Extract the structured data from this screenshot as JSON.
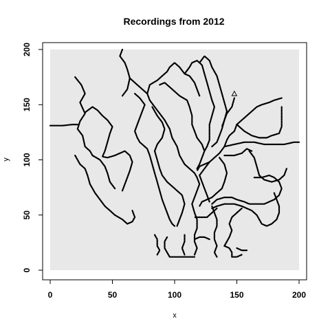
{
  "chart_data": {
    "type": "scatter",
    "title": "Recordings from 2012",
    "xlabel": "x",
    "ylabel": "y",
    "xlim": [
      0,
      200
    ],
    "ylim": [
      0,
      200
    ],
    "xticks": [
      0,
      50,
      100,
      150,
      200
    ],
    "yticks": [
      0,
      50,
      100,
      150,
      200
    ],
    "region_fill": "#e8e8e8",
    "track_color": "#000000",
    "marker": {
      "shape": "triangle-open",
      "x": 148,
      "y": 160
    },
    "tracks": [
      [
        [
          0,
          131
        ],
        [
          10,
          131
        ],
        [
          18,
          132
        ],
        [
          22,
          132
        ]
      ],
      [
        [
          20,
          175
        ],
        [
          25,
          168
        ],
        [
          28,
          160
        ],
        [
          24,
          152
        ],
        [
          28,
          142
        ],
        [
          24,
          135
        ],
        [
          22,
          128
        ],
        [
          26,
          122
        ],
        [
          28,
          112
        ],
        [
          32,
          108
        ],
        [
          34,
          104
        ]
      ],
      [
        [
          20,
          104
        ],
        [
          24,
          96
        ],
        [
          28,
          92
        ],
        [
          30,
          86
        ],
        [
          32,
          78
        ],
        [
          36,
          70
        ],
        [
          40,
          64
        ],
        [
          44,
          58
        ],
        [
          48,
          54
        ],
        [
          52,
          50
        ],
        [
          58,
          46
        ],
        [
          62,
          42
        ],
        [
          66,
          44
        ],
        [
          68,
          48
        ],
        [
          66,
          54
        ]
      ],
      [
        [
          28,
          143
        ],
        [
          34,
          148
        ],
        [
          38,
          145
        ],
        [
          42,
          140
        ],
        [
          46,
          136
        ],
        [
          50,
          130
        ],
        [
          48,
          124
        ],
        [
          46,
          116
        ],
        [
          44,
          108
        ],
        [
          42,
          103
        ],
        [
          46,
          102
        ],
        [
          52,
          104
        ]
      ],
      [
        [
          34,
          104
        ],
        [
          40,
          100
        ],
        [
          44,
          94
        ],
        [
          46,
          88
        ],
        [
          48,
          80
        ],
        [
          52,
          74
        ]
      ],
      [
        [
          52,
          104
        ],
        [
          60,
          108
        ],
        [
          64,
          104
        ],
        [
          66,
          98
        ],
        [
          64,
          90
        ],
        [
          62,
          84
        ],
        [
          60,
          78
        ],
        [
          58,
          72
        ]
      ],
      [
        [
          58,
          158
        ],
        [
          62,
          164
        ],
        [
          64,
          174
        ],
        [
          62,
          182
        ],
        [
          60,
          188
        ],
        [
          56,
          194
        ],
        [
          58,
          200
        ]
      ],
      [
        [
          64,
          174
        ],
        [
          70,
          168
        ],
        [
          74,
          164
        ],
        [
          78,
          160
        ],
        [
          80,
          154
        ],
        [
          84,
          148
        ],
        [
          88,
          142
        ],
        [
          92,
          136
        ],
        [
          96,
          128
        ],
        [
          98,
          120
        ],
        [
          102,
          112
        ],
        [
          104,
          104
        ],
        [
          108,
          96
        ],
        [
          112,
          92
        ],
        [
          116,
          88
        ],
        [
          118,
          84
        ],
        [
          120,
          78
        ],
        [
          118,
          72
        ],
        [
          116,
          66
        ],
        [
          114,
          60
        ],
        [
          116,
          52
        ],
        [
          118,
          46
        ],
        [
          118,
          38
        ],
        [
          116,
          32
        ],
        [
          116,
          26
        ],
        [
          118,
          20
        ],
        [
          116,
          14
        ]
      ],
      [
        [
          68,
          160
        ],
        [
          72,
          156
        ],
        [
          76,
          150
        ],
        [
          74,
          144
        ],
        [
          72,
          138
        ],
        [
          70,
          132
        ],
        [
          68,
          126
        ],
        [
          70,
          120
        ],
        [
          72,
          116
        ],
        [
          78,
          110
        ],
        [
          80,
          104
        ],
        [
          82,
          96
        ],
        [
          84,
          88
        ],
        [
          86,
          80
        ],
        [
          88,
          72
        ],
        [
          90,
          64
        ],
        [
          92,
          58
        ],
        [
          94,
          52
        ],
        [
          96,
          46
        ],
        [
          98,
          42
        ],
        [
          100,
          40
        ]
      ],
      [
        [
          78,
          160
        ],
        [
          80,
          168
        ],
        [
          86,
          172
        ],
        [
          90,
          176
        ],
        [
          94,
          180
        ],
        [
          96,
          184
        ],
        [
          100,
          188
        ],
        [
          104,
          184
        ],
        [
          108,
          178
        ],
        [
          112,
          176
        ],
        [
          116,
          170
        ],
        [
          118,
          164
        ],
        [
          120,
          158
        ]
      ],
      [
        [
          82,
          148
        ],
        [
          86,
          140
        ],
        [
          90,
          134
        ],
        [
          92,
          128
        ],
        [
          90,
          120
        ],
        [
          86,
          114
        ],
        [
          84,
          108
        ],
        [
          86,
          100
        ],
        [
          88,
          92
        ],
        [
          90,
          86
        ],
        [
          94,
          80
        ],
        [
          98,
          76
        ],
        [
          102,
          72
        ],
        [
          106,
          68
        ],
        [
          108,
          60
        ],
        [
          106,
          52
        ],
        [
          104,
          46
        ],
        [
          102,
          40
        ]
      ],
      [
        [
          88,
          168
        ],
        [
          92,
          170
        ],
        [
          96,
          166
        ],
        [
          100,
          162
        ],
        [
          104,
          158
        ],
        [
          110,
          154
        ],
        [
          112,
          148
        ],
        [
          114,
          140
        ],
        [
          114,
          132
        ],
        [
          116,
          126
        ],
        [
          118,
          120
        ],
        [
          122,
          114
        ],
        [
          124,
          108
        ],
        [
          122,
          102
        ],
        [
          120,
          96
        ],
        [
          118,
          92
        ]
      ],
      [
        [
          108,
          178
        ],
        [
          112,
          184
        ],
        [
          114,
          188
        ],
        [
          118,
          190
        ],
        [
          122,
          186
        ],
        [
          124,
          178
        ],
        [
          126,
          170
        ],
        [
          128,
          162
        ],
        [
          130,
          154
        ],
        [
          132,
          148
        ],
        [
          130,
          140
        ],
        [
          128,
          132
        ],
        [
          128,
          126
        ],
        [
          128,
          118
        ],
        [
          126,
          112
        ],
        [
          124,
          108
        ]
      ],
      [
        [
          120,
          188
        ],
        [
          124,
          194
        ],
        [
          128,
          190
        ],
        [
          130,
          184
        ],
        [
          134,
          176
        ],
        [
          136,
          168
        ],
        [
          138,
          160
        ],
        [
          140,
          152
        ],
        [
          142,
          144
        ],
        [
          140,
          136
        ],
        [
          138,
          128
        ],
        [
          136,
          122
        ],
        [
          134,
          116
        ],
        [
          130,
          112
        ]
      ],
      [
        [
          148,
          156
        ],
        [
          146,
          148
        ],
        [
          142,
          142
        ],
        [
          140,
          136
        ],
        [
          138,
          130
        ]
      ],
      [
        [
          150,
          132
        ],
        [
          154,
          136
        ],
        [
          158,
          140
        ],
        [
          162,
          144
        ],
        [
          166,
          148
        ],
        [
          170,
          150
        ],
        [
          176,
          152
        ],
        [
          180,
          154
        ],
        [
          186,
          156
        ]
      ],
      [
        [
          150,
          132
        ],
        [
          148,
          126
        ],
        [
          144,
          122
        ],
        [
          142,
          118
        ],
        [
          140,
          112
        ],
        [
          136,
          106
        ],
        [
          132,
          102
        ],
        [
          128,
          98
        ],
        [
          124,
          96
        ],
        [
          120,
          94
        ],
        [
          118,
          90
        ]
      ],
      [
        [
          150,
          132
        ],
        [
          156,
          126
        ],
        [
          162,
          122
        ],
        [
          168,
          120
        ],
        [
          174,
          120
        ],
        [
          178,
          122
        ],
        [
          184,
          124
        ],
        [
          186,
          130
        ],
        [
          186,
          136
        ],
        [
          186,
          142
        ],
        [
          186,
          148
        ]
      ],
      [
        [
          140,
          112
        ],
        [
          148,
          114
        ],
        [
          156,
          116
        ],
        [
          164,
          116
        ],
        [
          172,
          114
        ],
        [
          180,
          114
        ],
        [
          188,
          114
        ],
        [
          196,
          116
        ],
        [
          200,
          116
        ]
      ],
      [
        [
          140,
          104
        ],
        [
          148,
          104
        ],
        [
          154,
          106
        ],
        [
          158,
          110
        ],
        [
          162,
          108
        ]
      ],
      [
        [
          160,
          108
        ],
        [
          164,
          102
        ],
        [
          166,
          94
        ],
        [
          168,
          86
        ],
        [
          172,
          82
        ],
        [
          178,
          80
        ],
        [
          184,
          82
        ],
        [
          188,
          86
        ],
        [
          190,
          92
        ]
      ],
      [
        [
          136,
          102
        ],
        [
          140,
          96
        ],
        [
          142,
          88
        ],
        [
          140,
          80
        ],
        [
          138,
          74
        ],
        [
          134,
          70
        ],
        [
          130,
          66
        ],
        [
          126,
          64
        ],
        [
          122,
          62
        ],
        [
          120,
          58
        ]
      ],
      [
        [
          128,
          98
        ],
        [
          124,
          92
        ],
        [
          120,
          86
        ],
        [
          122,
          80
        ],
        [
          124,
          74
        ],
        [
          126,
          68
        ],
        [
          128,
          62
        ]
      ],
      [
        [
          164,
          84
        ],
        [
          170,
          84
        ],
        [
          176,
          86
        ],
        [
          180,
          84
        ],
        [
          184,
          80
        ],
        [
          186,
          74
        ],
        [
          184,
          68
        ],
        [
          180,
          64
        ],
        [
          176,
          62
        ],
        [
          172,
          60
        ],
        [
          166,
          60
        ],
        [
          160,
          60
        ],
        [
          156,
          62
        ],
        [
          150,
          64
        ],
        [
          146,
          66
        ],
        [
          140,
          66
        ],
        [
          134,
          64
        ],
        [
          130,
          60
        ]
      ],
      [
        [
          180,
          70
        ],
        [
          182,
          64
        ],
        [
          184,
          58
        ],
        [
          184,
          52
        ],
        [
          182,
          46
        ],
        [
          178,
          42
        ],
        [
          174,
          40
        ],
        [
          170,
          42
        ],
        [
          168,
          46
        ],
        [
          166,
          50
        ],
        [
          162,
          54
        ],
        [
          158,
          56
        ],
        [
          154,
          58
        ],
        [
          148,
          60
        ],
        [
          140,
          60
        ],
        [
          134,
          58
        ],
        [
          130,
          56
        ]
      ],
      [
        [
          134,
          56
        ],
        [
          130,
          52
        ],
        [
          126,
          48
        ],
        [
          120,
          48
        ],
        [
          116,
          48
        ]
      ],
      [
        [
          130,
          58
        ],
        [
          132,
          52
        ],
        [
          134,
          46
        ],
        [
          134,
          40
        ],
        [
          132,
          34
        ],
        [
          132,
          28
        ],
        [
          134,
          22
        ],
        [
          132,
          16
        ],
        [
          134,
          12
        ]
      ],
      [
        [
          128,
          28
        ],
        [
          124,
          30
        ],
        [
          120,
          30
        ],
        [
          116,
          28
        ]
      ],
      [
        [
          84,
          32
        ],
        [
          86,
          28
        ],
        [
          86,
          22
        ],
        [
          88,
          18
        ],
        [
          86,
          14
        ]
      ],
      [
        [
          94,
          30
        ],
        [
          92,
          26
        ],
        [
          92,
          20
        ],
        [
          94,
          16
        ],
        [
          96,
          12
        ],
        [
          104,
          12
        ],
        [
          112,
          12
        ],
        [
          116,
          12
        ]
      ],
      [
        [
          108,
          32
        ],
        [
          108,
          26
        ],
        [
          106,
          20
        ],
        [
          108,
          14
        ]
      ],
      [
        [
          140,
          22
        ],
        [
          144,
          20
        ],
        [
          146,
          16
        ],
        [
          146,
          12
        ],
        [
          150,
          12
        ],
        [
          154,
          14
        ]
      ],
      [
        [
          150,
          20
        ],
        [
          154,
          18
        ],
        [
          158,
          18
        ]
      ],
      [
        [
          140,
          22
        ],
        [
          144,
          30
        ],
        [
          146,
          36
        ],
        [
          144,
          42
        ],
        [
          146,
          48
        ],
        [
          150,
          52
        ],
        [
          154,
          56
        ]
      ]
    ]
  }
}
